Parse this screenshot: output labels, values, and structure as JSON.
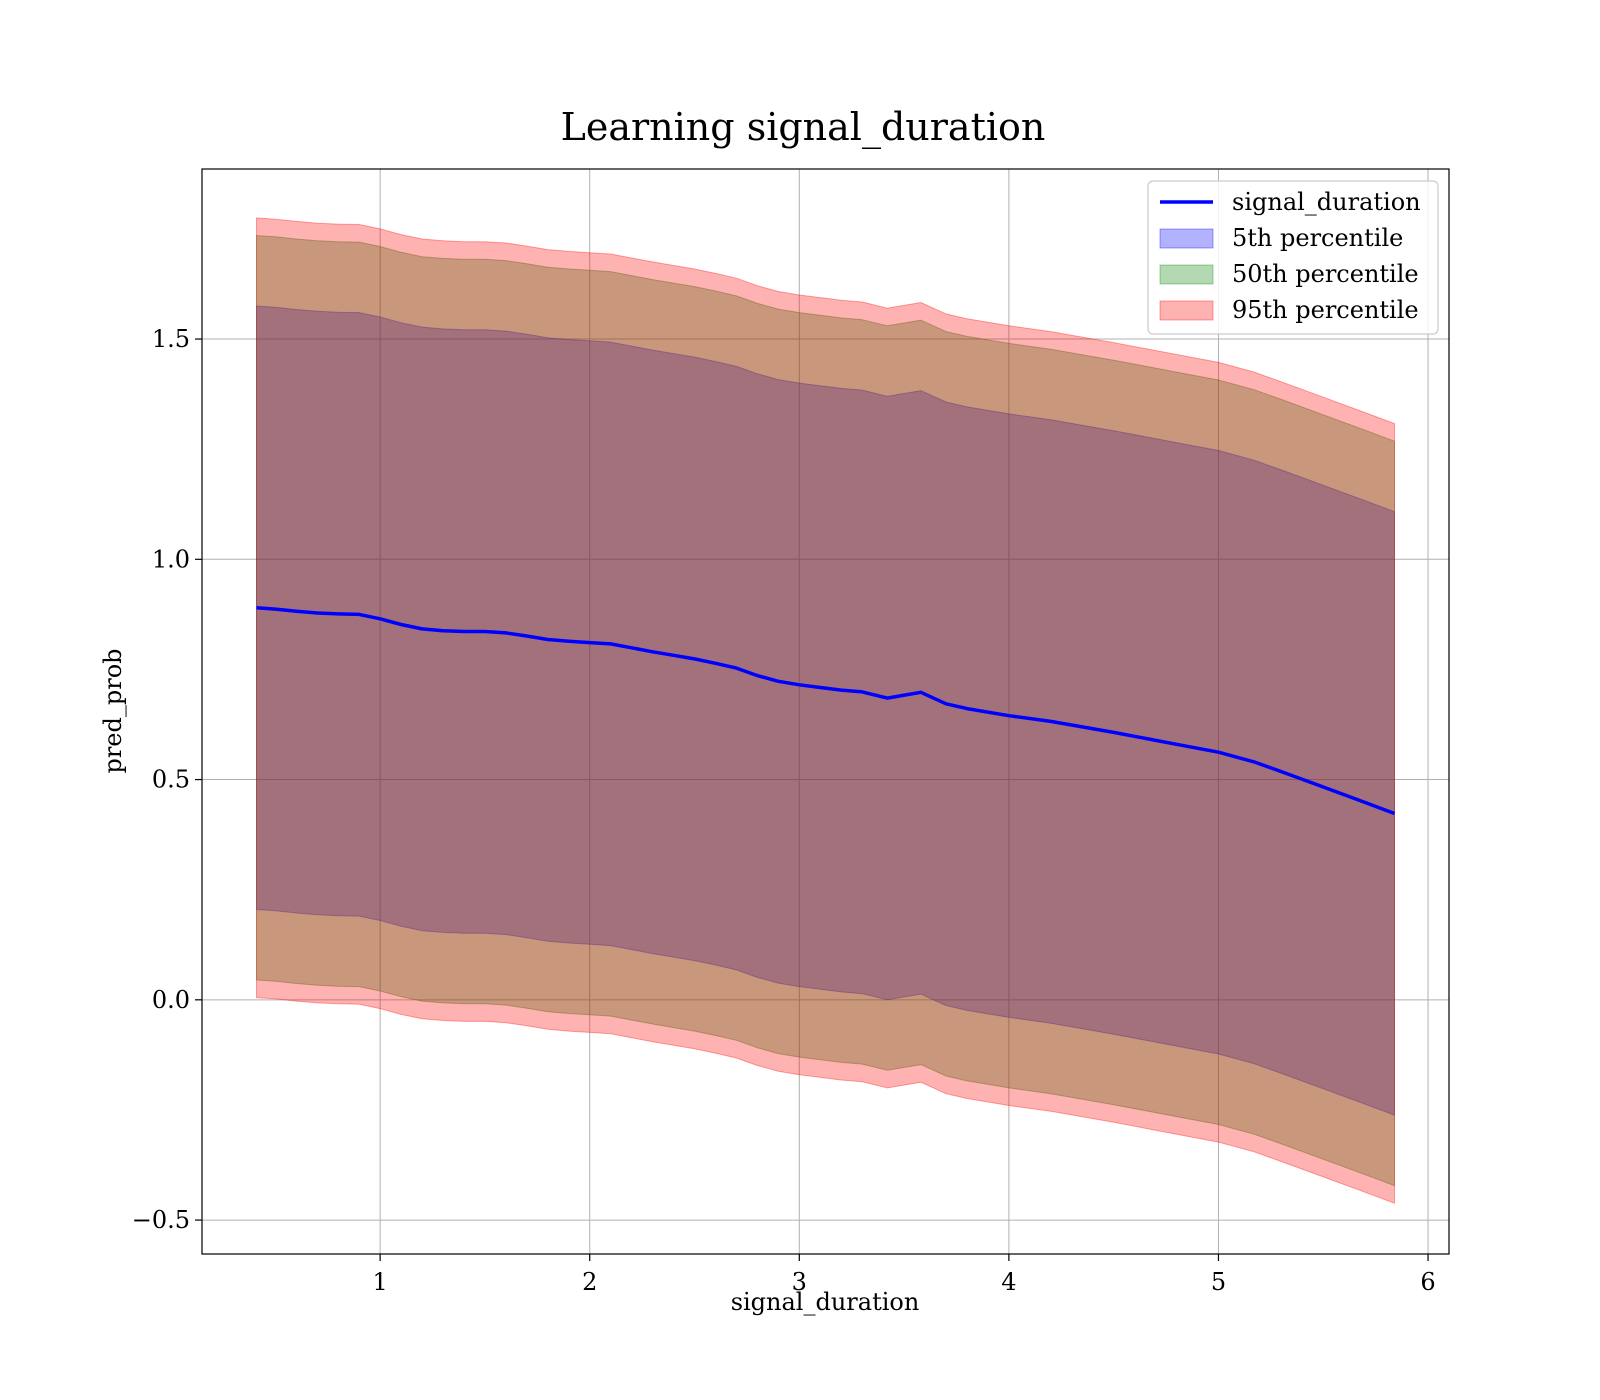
{
  "chart_data": {
    "type": "area",
    "title": "Learning signal_duration",
    "xlabel": "signal_duration",
    "ylabel": "pred_prob",
    "xlim": [
      0.15,
      6.1
    ],
    "ylim": [
      -0.577,
      1.886
    ],
    "xticks": [
      1,
      2,
      3,
      4,
      5,
      6
    ],
    "xtick_labels": [
      "1",
      "2",
      "3",
      "4",
      "5",
      "6"
    ],
    "yticks": [
      -0.5,
      0.0,
      0.5,
      1.0,
      1.5
    ],
    "ytick_labels": [
      "−0.5",
      "0.0",
      "0.5",
      "1.0",
      "1.5"
    ],
    "grid": true,
    "legend_position": "top-right",
    "x": [
      0.41,
      0.5,
      0.6,
      0.7,
      0.8,
      0.9,
      1.0,
      1.1,
      1.2,
      1.3,
      1.4,
      1.5,
      1.6,
      1.7,
      1.8,
      1.9,
      2.0,
      2.1,
      2.2,
      2.3,
      2.4,
      2.5,
      2.6,
      2.7,
      2.8,
      2.9,
      3.0,
      3.1,
      3.2,
      3.3,
      3.42,
      3.58,
      3.7,
      3.8,
      4.0,
      4.2,
      4.5,
      4.8,
      5.0,
      5.17,
      5.3,
      5.5,
      5.7,
      5.84
    ],
    "series": [
      {
        "name": "signal_duration",
        "type": "line",
        "color": "#0000ff",
        "values": [
          0.89,
          0.887,
          0.882,
          0.878,
          0.876,
          0.875,
          0.865,
          0.852,
          0.842,
          0.838,
          0.836,
          0.836,
          0.833,
          0.826,
          0.818,
          0.814,
          0.811,
          0.808,
          0.799,
          0.79,
          0.782,
          0.774,
          0.764,
          0.753,
          0.736,
          0.723,
          0.715,
          0.709,
          0.703,
          0.699,
          0.685,
          0.698,
          0.672,
          0.661,
          0.645,
          0.632,
          0.607,
          0.58,
          0.562,
          0.54,
          0.518,
          0.483,
          0.448,
          0.423
        ]
      },
      {
        "name": "5th percentile",
        "type": "band",
        "color": "#0000ff",
        "lower": [
          0.205,
          0.202,
          0.197,
          0.193,
          0.191,
          0.19,
          0.18,
          0.167,
          0.157,
          0.153,
          0.151,
          0.151,
          0.148,
          0.141,
          0.133,
          0.129,
          0.126,
          0.123,
          0.114,
          0.105,
          0.097,
          0.089,
          0.079,
          0.068,
          0.051,
          0.038,
          0.03,
          0.024,
          0.018,
          0.014,
          0.0,
          0.013,
          -0.013,
          -0.024,
          -0.04,
          -0.053,
          -0.078,
          -0.105,
          -0.123,
          -0.145,
          -0.167,
          -0.202,
          -0.237,
          -0.262
        ],
        "upper": [
          1.575,
          1.572,
          1.567,
          1.563,
          1.561,
          1.56,
          1.55,
          1.537,
          1.527,
          1.523,
          1.521,
          1.521,
          1.518,
          1.511,
          1.503,
          1.499,
          1.496,
          1.493,
          1.484,
          1.475,
          1.467,
          1.459,
          1.449,
          1.438,
          1.421,
          1.408,
          1.4,
          1.394,
          1.388,
          1.384,
          1.37,
          1.383,
          1.357,
          1.346,
          1.33,
          1.317,
          1.292,
          1.265,
          1.247,
          1.225,
          1.203,
          1.168,
          1.133,
          1.108
        ]
      },
      {
        "name": "50th percentile",
        "type": "band",
        "color": "#008000",
        "lower": [
          0.045,
          0.042,
          0.037,
          0.033,
          0.031,
          0.03,
          0.02,
          0.007,
          -0.003,
          -0.007,
          -0.009,
          -0.009,
          -0.012,
          -0.019,
          -0.027,
          -0.031,
          -0.034,
          -0.037,
          -0.046,
          -0.055,
          -0.063,
          -0.071,
          -0.081,
          -0.092,
          -0.109,
          -0.122,
          -0.13,
          -0.136,
          -0.142,
          -0.146,
          -0.16,
          -0.147,
          -0.173,
          -0.184,
          -0.2,
          -0.213,
          -0.238,
          -0.265,
          -0.283,
          -0.305,
          -0.327,
          -0.362,
          -0.397,
          -0.422
        ],
        "upper": [
          1.735,
          1.732,
          1.727,
          1.723,
          1.721,
          1.72,
          1.71,
          1.697,
          1.687,
          1.683,
          1.681,
          1.681,
          1.678,
          1.671,
          1.663,
          1.659,
          1.656,
          1.653,
          1.644,
          1.635,
          1.627,
          1.619,
          1.609,
          1.598,
          1.581,
          1.568,
          1.56,
          1.554,
          1.548,
          1.544,
          1.53,
          1.543,
          1.517,
          1.506,
          1.49,
          1.477,
          1.452,
          1.425,
          1.407,
          1.385,
          1.363,
          1.328,
          1.293,
          1.268
        ]
      },
      {
        "name": "95th percentile",
        "type": "band",
        "color": "#ff0000",
        "lower": [
          0.005,
          0.002,
          -0.003,
          -0.007,
          -0.009,
          -0.01,
          -0.02,
          -0.033,
          -0.043,
          -0.047,
          -0.049,
          -0.049,
          -0.052,
          -0.059,
          -0.067,
          -0.071,
          -0.074,
          -0.077,
          -0.086,
          -0.095,
          -0.103,
          -0.111,
          -0.121,
          -0.132,
          -0.149,
          -0.162,
          -0.17,
          -0.176,
          -0.182,
          -0.186,
          -0.2,
          -0.187,
          -0.213,
          -0.224,
          -0.24,
          -0.253,
          -0.278,
          -0.305,
          -0.323,
          -0.345,
          -0.367,
          -0.402,
          -0.437,
          -0.462
        ],
        "upper": [
          1.775,
          1.772,
          1.767,
          1.763,
          1.761,
          1.76,
          1.75,
          1.737,
          1.727,
          1.723,
          1.721,
          1.721,
          1.718,
          1.711,
          1.703,
          1.699,
          1.696,
          1.693,
          1.684,
          1.675,
          1.667,
          1.659,
          1.649,
          1.638,
          1.621,
          1.608,
          1.6,
          1.594,
          1.588,
          1.584,
          1.57,
          1.583,
          1.557,
          1.546,
          1.53,
          1.517,
          1.492,
          1.465,
          1.447,
          1.425,
          1.403,
          1.368,
          1.333,
          1.308
        ]
      }
    ]
  }
}
